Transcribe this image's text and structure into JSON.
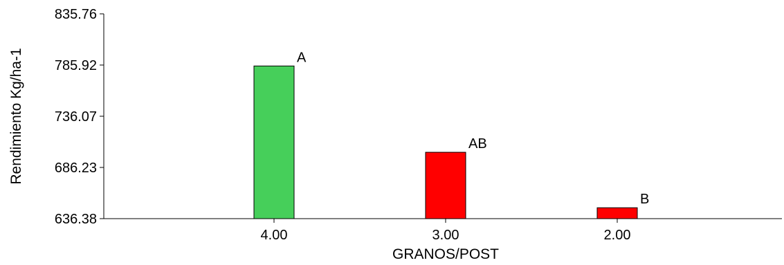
{
  "chart_data": {
    "type": "bar",
    "xlabel": "GRANOS/POST",
    "ylabel": "Rendimiento Kg/ha-1",
    "ylim": [
      636.38,
      835.76
    ],
    "y_ticks": [
      "636.38",
      "686.23",
      "736.07",
      "785.92",
      "835.76"
    ],
    "categories": [
      "4.00",
      "3.00",
      "2.00"
    ],
    "values": [
      785.0,
      701.0,
      647.0
    ],
    "bar_labels": [
      "A",
      "AB",
      "B"
    ],
    "bar_colors": [
      "#46cf5a",
      "#ff0000",
      "#ff0000"
    ],
    "bar_edge_color": "#000000",
    "grid": false,
    "legend": "none"
  }
}
